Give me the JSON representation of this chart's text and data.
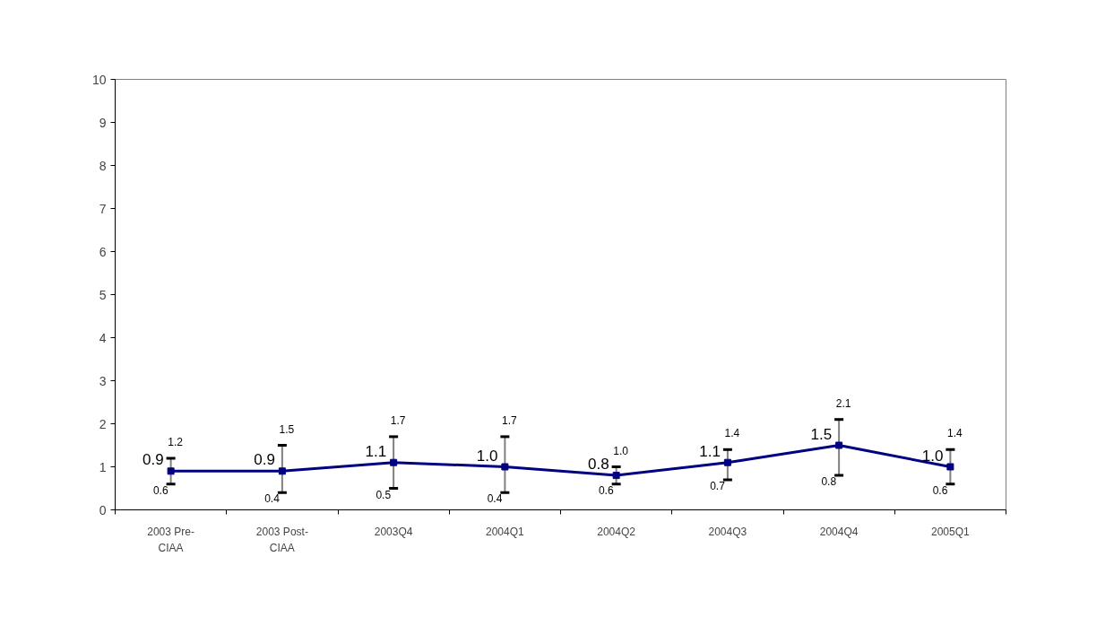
{
  "chart_data": {
    "type": "line",
    "categories": [
      "2003 Pre-CIAA",
      "2003 Post-CIAA",
      "2003Q4",
      "2004Q1",
      "2004Q2",
      "2004Q3",
      "2004Q4",
      "2005Q1"
    ],
    "series": [
      {
        "color": "#000080",
        "values": [
          0.9,
          0.9,
          1.1,
          1.0,
          0.8,
          1.1,
          1.5,
          1.0
        ],
        "errors": [
          [
            0.6,
            1.2
          ],
          [
            0.4,
            1.5
          ],
          [
            0.5,
            1.7
          ],
          [
            0.4,
            1.7
          ],
          [
            0.6,
            1.0
          ],
          [
            0.7,
            1.4
          ],
          [
            0.8,
            2.1
          ],
          [
            0.6,
            1.4
          ]
        ],
        "value_labels": [
          "0.9",
          "0.9",
          "1.1",
          "1.0",
          "0.8",
          "1.1",
          "1.5",
          "1.0"
        ]
      }
    ],
    "annotations": [
      {
        "text": "1.2",
        "x": "2003 Pre-CIAA",
        "y": 1.2
      },
      {
        "text": "0.6",
        "x": "2003 Pre-CIAA",
        "y": 0.6
      },
      {
        "text": "1.5",
        "x": "2003 Post-CIAA",
        "y": 1.5
      },
      {
        "text": "0.4",
        "x": "2003 Post-CIAA",
        "y": 0.4
      },
      {
        "text": "1.7",
        "x": "2003Q4",
        "y": 1.7
      },
      {
        "text": "0.5",
        "x": "2003Q4",
        "y": 0.5
      },
      {
        "text": "1.7",
        "x": "2004Q1",
        "y": 1.7
      },
      {
        "text": "0.4",
        "x": "2004Q1",
        "y": 0.4
      },
      {
        "text": "1.0",
        "x": "2004Q2",
        "y": 1.0
      },
      {
        "text": "0.6",
        "x": "2004Q2",
        "y": 0.6
      },
      {
        "text": "1.4",
        "x": "2004Q3",
        "y": 1.4
      },
      {
        "text": "0.7",
        "x": "2004Q3",
        "y": 0.7
      },
      {
        "text": "2.1",
        "x": "2004Q4",
        "y": 2.1
      },
      {
        "text": "0.8",
        "x": "2004Q4",
        "y": 0.8
      },
      {
        "text": "1.4",
        "x": "2005Q1",
        "y": 1.4
      },
      {
        "text": "0.6",
        "x": "2005Q1",
        "y": 0.6
      }
    ],
    "ylim": [
      0,
      10
    ],
    "yticks": [
      0,
      1,
      2,
      3,
      4,
      5,
      6,
      7,
      8,
      9,
      10
    ],
    "grid": false,
    "marker": "square",
    "line_style": "solid"
  }
}
